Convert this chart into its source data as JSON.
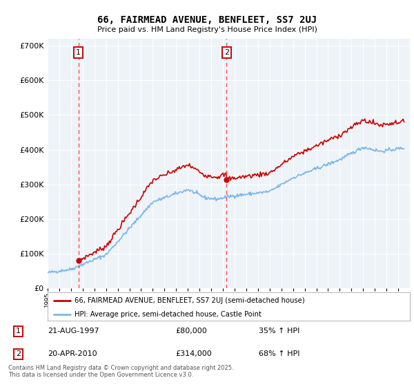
{
  "title_line1": "66, FAIRMEAD AVENUE, BENFLEET, SS7 2UJ",
  "title_line2": "Price paid vs. HM Land Registry's House Price Index (HPI)",
  "legend_line1": "66, FAIRMEAD AVENUE, BENFLEET, SS7 2UJ (semi-detached house)",
  "legend_line2": "HPI: Average price, semi-detached house, Castle Point",
  "marker1_date": "21-AUG-1997",
  "marker1_price": 80000,
  "marker1_label": "35% ↑ HPI",
  "marker2_date": "20-APR-2010",
  "marker2_price": 314000,
  "marker2_label": "68% ↑ HPI",
  "footer": "Contains HM Land Registry data © Crown copyright and database right 2025.\nThis data is licensed under the Open Government Licence v3.0.",
  "price_color": "#cc0000",
  "hpi_color": "#7db8e8",
  "background_color": "#eef3f8",
  "ylim": [
    0,
    720000
  ],
  "ylabel_ticks": [
    0,
    100000,
    200000,
    300000,
    400000,
    500000,
    600000,
    700000
  ]
}
